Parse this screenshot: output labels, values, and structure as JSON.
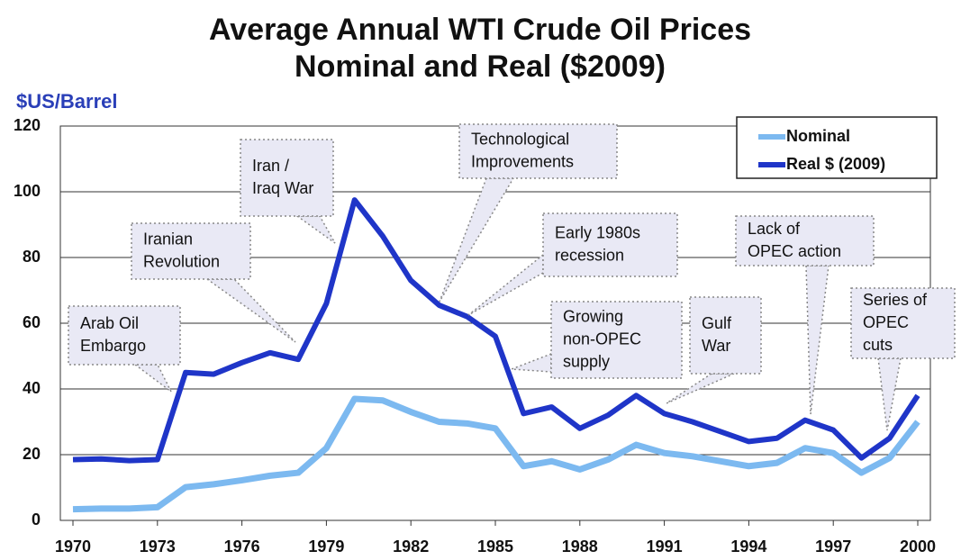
{
  "chart_data": {
    "type": "line",
    "title": [
      "Average Annual WTI Crude Oil Prices",
      "Nominal and Real ($2009)"
    ],
    "y_label": "$US/Barrel",
    "x": [
      1970,
      1971,
      1972,
      1973,
      1974,
      1975,
      1976,
      1977,
      1978,
      1979,
      1980,
      1981,
      1982,
      1983,
      1984,
      1985,
      1986,
      1987,
      1988,
      1989,
      1990,
      1991,
      1992,
      1993,
      1994,
      1995,
      1996,
      1997,
      1998,
      1999,
      2000
    ],
    "series": [
      {
        "name": "Nominal",
        "color": "#7cb9f0",
        "values": [
          3.4,
          3.6,
          3.6,
          4.0,
          10.1,
          11,
          12.2,
          13.6,
          14.5,
          22,
          37,
          36.5,
          33,
          30,
          29.5,
          28,
          16.5,
          18,
          15.5,
          18.5,
          23,
          20.5,
          19.5,
          18,
          16.5,
          17.5,
          22,
          20.5,
          14.5,
          19,
          30
        ]
      },
      {
        "name": "Real $ (2009)",
        "color": "#1f35c8",
        "values": [
          18.5,
          18.7,
          18.2,
          18.5,
          45,
          44.5,
          48,
          51,
          49,
          66,
          97.5,
          86.5,
          73,
          65.5,
          62,
          56,
          32.5,
          34.5,
          28,
          32,
          38,
          32.5,
          30,
          27,
          24,
          25,
          30.5,
          27.5,
          19,
          25,
          38
        ]
      }
    ],
    "xlim": [
      1970,
      2000
    ],
    "xticks": [
      1970,
      1973,
      1976,
      1979,
      1982,
      1985,
      1988,
      1991,
      1994,
      1997,
      2000
    ],
    "ylim": [
      0,
      120
    ],
    "yticks": [
      0,
      20,
      40,
      60,
      80,
      100,
      120
    ],
    "grid": true,
    "legend": "upper right",
    "annotations": [
      {
        "lines": [
          "Arab Oil",
          "Embargo"
        ]
      },
      {
        "lines": [
          "Iranian",
          "Revolution"
        ]
      },
      {
        "lines": [
          "Iran /",
          "Iraq War"
        ]
      },
      {
        "lines": [
          "Technological",
          "Improvements"
        ]
      },
      {
        "lines": [
          "Early 1980s",
          "recession"
        ]
      },
      {
        "lines": [
          "Growing",
          "non-OPEC",
          "supply"
        ]
      },
      {
        "lines": [
          "Gulf",
          "War"
        ]
      },
      {
        "lines": [
          "Lack of",
          "OPEC action"
        ]
      },
      {
        "lines": [
          "Series of",
          "OPEC",
          "cuts"
        ]
      }
    ]
  }
}
